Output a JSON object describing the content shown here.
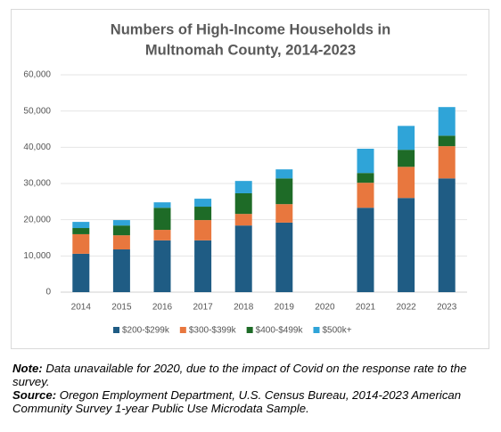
{
  "chart_data": {
    "type": "stacked-bar",
    "title": [
      "Numbers of High-Income Households in",
      "Multnomah County, 2014-2023"
    ],
    "categories": [
      "2014",
      "2015",
      "2016",
      "2017",
      "2018",
      "2019",
      "2020",
      "2021",
      "2022",
      "2023"
    ],
    "series": [
      {
        "name": "$200-$299k",
        "color": "#1f5c84",
        "values": [
          10600,
          11800,
          14300,
          14300,
          18400,
          19200,
          null,
          23300,
          26000,
          31400
        ]
      },
      {
        "name": "$300-$399k",
        "color": "#e8773e",
        "values": [
          5400,
          3900,
          2900,
          5600,
          3200,
          5100,
          null,
          6900,
          8600,
          8900
        ]
      },
      {
        "name": "$400-$499k",
        "color": "#1e6b27",
        "values": [
          1700,
          2700,
          6100,
          3700,
          5700,
          7100,
          null,
          2700,
          4700,
          2900
        ]
      },
      {
        "name": "$500k+",
        "color": "#2fa4d8",
        "values": [
          1700,
          1500,
          1500,
          2200,
          3400,
          2500,
          null,
          6700,
          6600,
          7900
        ]
      }
    ],
    "ylim": [
      0,
      60000
    ],
    "yticks": [
      0,
      {
        "value": 10000,
        "label": "10,000"
      },
      {
        "value": 20000,
        "label": "20,000"
      },
      {
        "value": 30000,
        "label": "30,000"
      },
      {
        "value": 40000,
        "label": "40,000"
      },
      {
        "value": 50000,
        "label": "50,000"
      },
      {
        "value": 60000,
        "label": "60,000"
      }
    ],
    "grid": true
  },
  "notes": {
    "note": {
      "label": "Note:",
      "text": " Data unavailable for 2020, due to the impact of Covid on the response rate to the survey."
    },
    "source": {
      "label": "Source:",
      "text": " Oregon Employment Department, U.S. Census Bureau, 2014-2023 American Community Survey 1-year Public Use Microdata Sample."
    }
  }
}
